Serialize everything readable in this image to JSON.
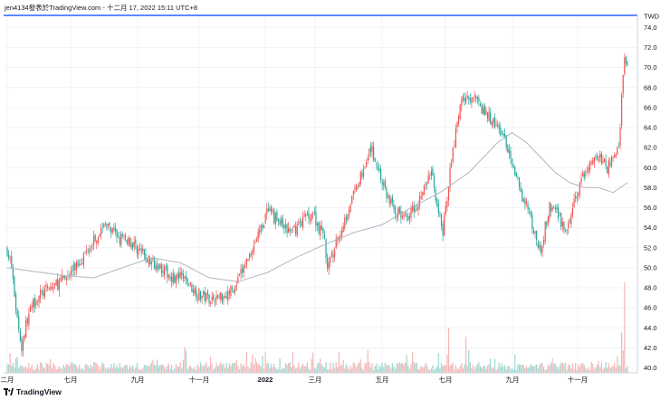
{
  "header": {
    "attribution": "jen4134發表於TradingView.com - 十二月 17, 2022 15:11 UTC+8"
  },
  "footer": {
    "brand": "TradingView",
    "logo_icon": "tradingview-logo-icon"
  },
  "colors": {
    "up": "#ef5350",
    "down": "#26a69a",
    "up_volume": "#f5b5b4",
    "down_volume": "#9fd6cf",
    "moving_average": "#b2b5be",
    "axis_line": "#2962ff",
    "grid": "#f0f3fa"
  },
  "chart_data": {
    "type": "candlestick",
    "currency": "TWD",
    "ylim": [
      39.5,
      75.2
    ],
    "y_ticks": [
      "74.0",
      "72.0",
      "70.0",
      "68.0",
      "66.0",
      "64.0",
      "62.0",
      "60.0",
      "58.0",
      "56.0",
      "54.0",
      "52.0",
      "50.0",
      "48.0",
      "46.0",
      "44.0",
      "42.0",
      "40.0"
    ],
    "x_ticks": [
      "二月",
      "七月",
      "九月",
      "十一月",
      "2022",
      "三月",
      "五月",
      "七月",
      "九月",
      "十一月"
    ],
    "grid": true,
    "series": [
      {
        "name": "",
        "kind": "candles",
        "price_path": [
          [
            0,
            51.8
          ],
          [
            3,
            50.0
          ],
          [
            6,
            46.0
          ],
          [
            10,
            42.0
          ],
          [
            14,
            45.0
          ],
          [
            20,
            47.0
          ],
          [
            28,
            47.8
          ],
          [
            36,
            48.5
          ],
          [
            44,
            49.5
          ],
          [
            52,
            51.0
          ],
          [
            58,
            52.5
          ],
          [
            64,
            53.5
          ],
          [
            68,
            54.5
          ],
          [
            72,
            53.5
          ],
          [
            78,
            53.0
          ],
          [
            84,
            52.8
          ],
          [
            90,
            52.0
          ],
          [
            96,
            51.0
          ],
          [
            100,
            50.5
          ],
          [
            104,
            50.5
          ],
          [
            110,
            49.5
          ],
          [
            116,
            49.0
          ],
          [
            122,
            49.0
          ],
          [
            128,
            48.0
          ],
          [
            134,
            47.2
          ],
          [
            140,
            47.0
          ],
          [
            146,
            47.0
          ],
          [
            152,
            47.4
          ],
          [
            158,
            48.0
          ],
          [
            164,
            50.0
          ],
          [
            170,
            52.0
          ],
          [
            176,
            54.0
          ],
          [
            180,
            55.5
          ],
          [
            186,
            55.0
          ],
          [
            192,
            54.0
          ],
          [
            196,
            53.5
          ],
          [
            200,
            54.0
          ],
          [
            206,
            55.0
          ],
          [
            212,
            55.5
          ],
          [
            216,
            54.0
          ],
          [
            220,
            53.0
          ],
          [
            222,
            49.8
          ],
          [
            226,
            51.5
          ],
          [
            232,
            54.0
          ],
          [
            238,
            56.5
          ],
          [
            244,
            58.5
          ],
          [
            248,
            60.5
          ],
          [
            252,
            62.0
          ],
          [
            256,
            60.5
          ],
          [
            260,
            58.5
          ],
          [
            264,
            57.0
          ],
          [
            270,
            55.5
          ],
          [
            276,
            55.0
          ],
          [
            282,
            56.0
          ],
          [
            288,
            57.5
          ],
          [
            294,
            59.5
          ],
          [
            298,
            56.5
          ],
          [
            302,
            53.5
          ],
          [
            306,
            58.5
          ],
          [
            310,
            62.5
          ],
          [
            314,
            66.0
          ],
          [
            318,
            67.5
          ],
          [
            322,
            66.5
          ],
          [
            326,
            67.5
          ],
          [
            330,
            65.5
          ],
          [
            334,
            65.0
          ],
          [
            340,
            64.0
          ],
          [
            346,
            62.5
          ],
          [
            350,
            60.0
          ],
          [
            356,
            57.5
          ],
          [
            362,
            55.5
          ],
          [
            366,
            53.0
          ],
          [
            370,
            52.0
          ],
          [
            376,
            56.0
          ],
          [
            380,
            55.5
          ],
          [
            384,
            54.5
          ],
          [
            388,
            53.5
          ],
          [
            392,
            56.0
          ],
          [
            398,
            58.5
          ],
          [
            404,
            60.5
          ],
          [
            410,
            61.0
          ],
          [
            416,
            60.0
          ],
          [
            420,
            61.0
          ],
          [
            424,
            62.0
          ],
          [
            426,
            67.0
          ],
          [
            428,
            71.0
          ],
          [
            430,
            70.0
          ]
        ]
      },
      {
        "name": "",
        "kind": "moving_average",
        "points": [
          [
            0,
            50.0
          ],
          [
            20,
            49.6
          ],
          [
            40,
            49.2
          ],
          [
            60,
            49.0
          ],
          [
            80,
            50.0
          ],
          [
            100,
            51.0
          ],
          [
            120,
            50.5
          ],
          [
            140,
            49.0
          ],
          [
            160,
            48.6
          ],
          [
            180,
            49.5
          ],
          [
            200,
            51.0
          ],
          [
            220,
            52.3
          ],
          [
            240,
            53.5
          ],
          [
            260,
            54.3
          ],
          [
            280,
            56.0
          ],
          [
            300,
            57.5
          ],
          [
            320,
            59.5
          ],
          [
            340,
            62.5
          ],
          [
            350,
            63.5
          ],
          [
            360,
            62.5
          ],
          [
            370,
            61.0
          ],
          [
            380,
            59.5
          ],
          [
            390,
            58.5
          ],
          [
            400,
            58.0
          ],
          [
            410,
            58.0
          ],
          [
            420,
            57.5
          ],
          [
            430,
            58.5
          ]
        ]
      },
      {
        "name": "",
        "kind": "volume",
        "unit": "relative",
        "spikes": [
          [
            306,
            0.5
          ],
          [
            305,
            0.2
          ],
          [
            318,
            0.4
          ],
          [
            352,
            0.2
          ],
          [
            378,
            0.16
          ],
          [
            428,
            1.0
          ],
          [
            426,
            0.45
          ],
          [
            427,
            0.25
          ],
          [
            423,
            0.18
          ],
          [
            250,
            0.25
          ],
          [
            245,
            0.15
          ],
          [
            320,
            0.25
          ],
          [
            60,
            0.12
          ]
        ]
      }
    ]
  }
}
